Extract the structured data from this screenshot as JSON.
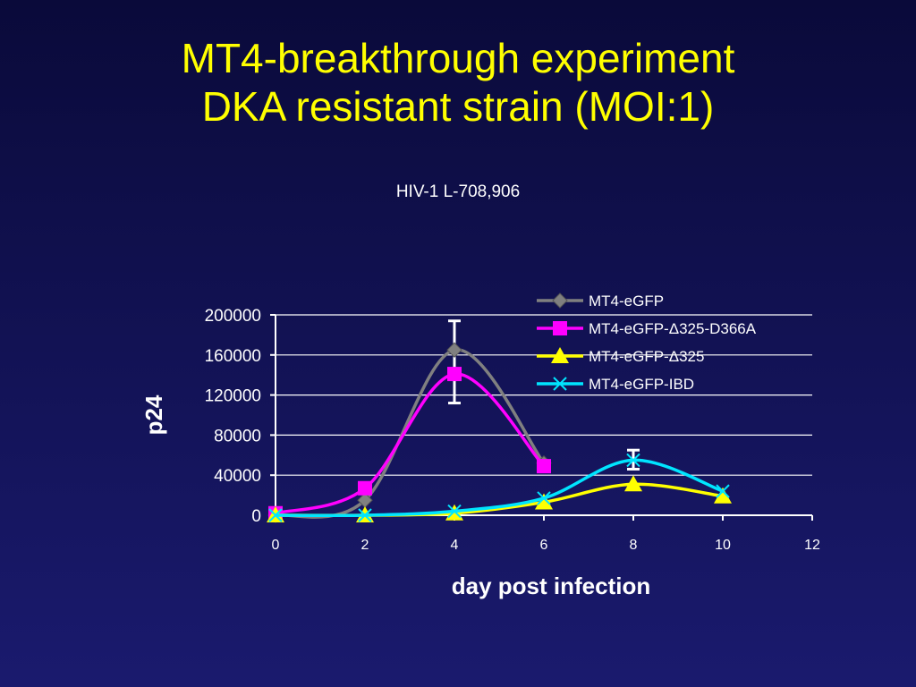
{
  "title_line1": "MT4-breakthrough experiment",
  "title_line2": "DKA resistant strain (MOI:1)",
  "subtitle": "HIV-1 L-708,906",
  "colors": {
    "background": "#10104a",
    "title": "#ffff00",
    "text": "#ffffff"
  },
  "chart_data": {
    "type": "line",
    "xlabel": "day post infection",
    "ylabel": "p24",
    "xlim": [
      0,
      12
    ],
    "ylim": [
      0,
      200000
    ],
    "x_ticks": [
      "0",
      "2",
      "4",
      "6",
      "8",
      "10",
      "12"
    ],
    "y_ticks": [
      "0",
      "40000",
      "80000",
      "120000",
      "160000",
      "200000"
    ],
    "grid": "horizontal",
    "legend_position": "top-right",
    "series": [
      {
        "name": "MT4-eGFP",
        "color": "#808080",
        "marker": "diamond",
        "points": [
          [
            0,
            0
          ],
          [
            2,
            15000
          ],
          [
            4,
            165000
          ],
          [
            6,
            52000
          ]
        ],
        "error_bars": [
          {
            "x": 4,
            "low": 112000,
            "high": 194000
          }
        ]
      },
      {
        "name": "MT4-eGFP-Δ325-D366A",
        "color": "#ff00ff",
        "marker": "square",
        "points": [
          [
            0,
            2000
          ],
          [
            2,
            27000
          ],
          [
            4,
            141000
          ],
          [
            6,
            49000
          ]
        ]
      },
      {
        "name": "MT4-eGFP-Δ325",
        "color": "#ffff00",
        "marker": "triangle",
        "points": [
          [
            0,
            0
          ],
          [
            2,
            0
          ],
          [
            4,
            2000
          ],
          [
            6,
            13000
          ],
          [
            8,
            31000
          ],
          [
            10,
            19000
          ]
        ]
      },
      {
        "name": "MT4-eGFP-IBD",
        "color": "#00e5ff",
        "marker": "x",
        "points": [
          [
            0,
            0
          ],
          [
            2,
            0
          ],
          [
            4,
            4000
          ],
          [
            6,
            17000
          ],
          [
            8,
            55000
          ],
          [
            10,
            24000
          ]
        ],
        "error_bars": [
          {
            "x": 8,
            "low": 46000,
            "high": 65000
          }
        ]
      }
    ]
  }
}
